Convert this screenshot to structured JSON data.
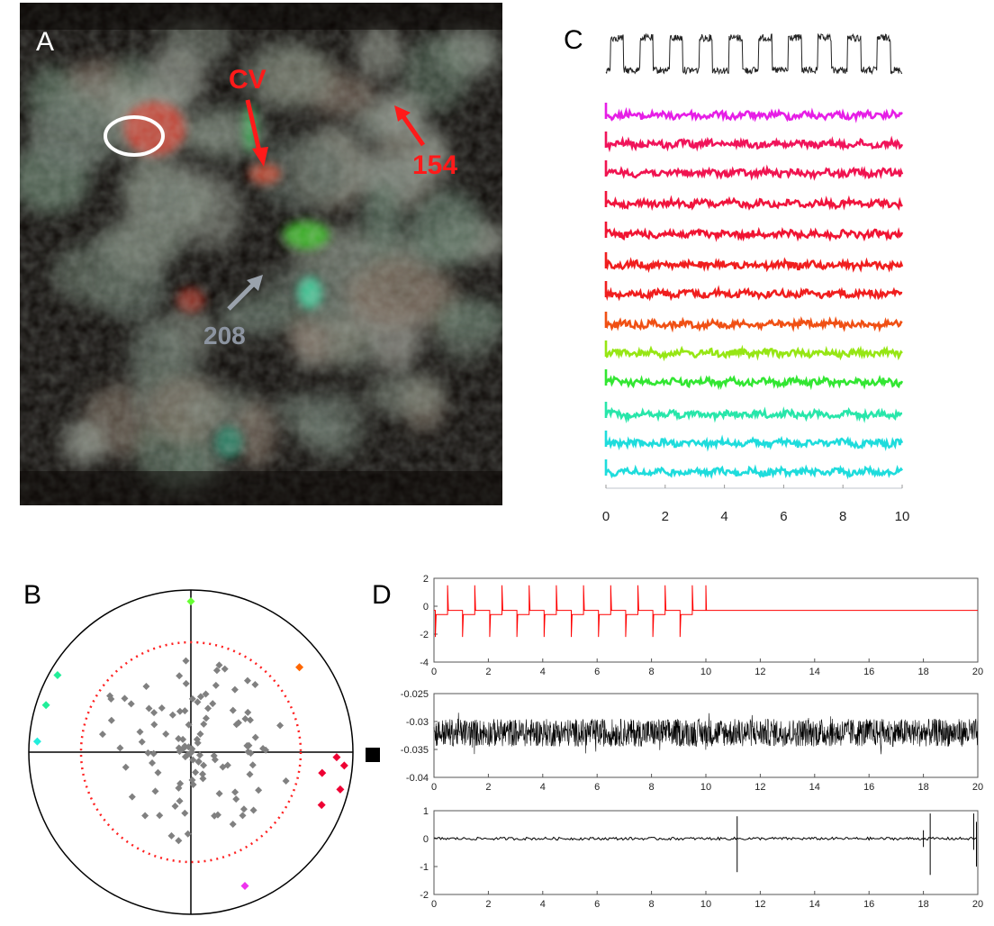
{
  "panels": {
    "A": {
      "letter": "A",
      "labels": {
        "cv": "CV",
        "n154": "154",
        "n208": "208"
      },
      "colors": {
        "red_label": "#ff1a1a",
        "gray_label": "#8c94a0",
        "ellipse": "#ffffff"
      }
    },
    "B": {
      "letter": "B",
      "legend_marker": "black-square"
    },
    "C": {
      "letter": "C",
      "x_ticks": [
        "0",
        "2",
        "4",
        "6",
        "8",
        "10"
      ],
      "trace_colors": [
        "#e61ee6",
        "#f0145a",
        "#f01450",
        "#f0143c",
        "#f01432",
        "#f01e1e",
        "#f01e1e",
        "#f05014",
        "#96e614",
        "#32e632",
        "#28e6aa",
        "#1edcdc",
        "#1edcdc"
      ],
      "stimulus_color": "#222222"
    },
    "D": {
      "letter": "D"
    }
  },
  "chart_data": [
    {
      "type": "line",
      "panel": "D-top",
      "xlim": [
        0,
        20
      ],
      "ylim": [
        -4,
        2
      ],
      "x_ticks": [
        "0",
        "2",
        "4",
        "6",
        "8",
        "10",
        "12",
        "14",
        "16",
        "18",
        "20"
      ],
      "y_ticks": [
        "2",
        "0",
        "-2",
        "-4"
      ],
      "color": "#ff0000",
      "baseline": -0.3,
      "pulse_period_s": 1.0,
      "pulse_high": -0.6,
      "pulse_low": -0.3,
      "spike_up": 1.5,
      "spike_down": -2.2,
      "stim_end_s": 10
    },
    {
      "type": "line",
      "panel": "D-middle",
      "xlim": [
        0,
        20
      ],
      "ylim": [
        -0.04,
        -0.025
      ],
      "x_ticks": [
        "0",
        "2",
        "4",
        "6",
        "8",
        "10",
        "12",
        "14",
        "16",
        "18",
        "20"
      ],
      "y_ticks": [
        "-0.025",
        "-0.03",
        "-0.035",
        "-0.04"
      ],
      "color": "#000000",
      "mean": -0.032,
      "noise_amplitude": 0.0025
    },
    {
      "type": "line",
      "panel": "D-bottom",
      "xlim": [
        0,
        20
      ],
      "ylim": [
        -2,
        1
      ],
      "x_ticks": [
        "0",
        "2",
        "4",
        "6",
        "8",
        "10",
        "12",
        "14",
        "16",
        "18",
        "20"
      ],
      "y_ticks": [
        "1",
        "0",
        "-1",
        "-2"
      ],
      "color": "#000000",
      "events": [
        {
          "x": 11.15,
          "up": 0.8,
          "down": -1.2
        },
        {
          "x": 18.0,
          "up": 0.3,
          "down": -0.3
        },
        {
          "x": 18.25,
          "up": 0.9,
          "down": -1.3
        },
        {
          "x": 19.85,
          "up": 0.9,
          "down": -0.4
        },
        {
          "x": 19.95,
          "up": 0.6,
          "down": -1.0
        }
      ]
    },
    {
      "type": "line",
      "panel": "C",
      "xlim": [
        0,
        10
      ],
      "x_ticks": [
        "0",
        "2",
        "4",
        "6",
        "8",
        "10"
      ],
      "stimulus": {
        "period": 1.0,
        "cycles": 10,
        "color": "#222222"
      },
      "series_count": 13
    },
    {
      "type": "scatter",
      "panel": "B",
      "description": "polar phase plot",
      "marker": "diamond",
      "points_colored": [
        {
          "r": 0.93,
          "angle_deg": 90,
          "color": "#66ff33"
        },
        {
          "r": 0.95,
          "angle_deg": 150,
          "color": "#22ee99"
        },
        {
          "r": 0.94,
          "angle_deg": 162,
          "color": "#22ee99"
        },
        {
          "r": 0.95,
          "angle_deg": 176,
          "color": "#22eedd"
        },
        {
          "r": 0.85,
          "angle_deg": 38,
          "color": "#ff6600"
        },
        {
          "r": 0.9,
          "angle_deg": -2,
          "color": "#ee0033"
        },
        {
          "r": 0.95,
          "angle_deg": -5,
          "color": "#ee0033"
        },
        {
          "r": 0.82,
          "angle_deg": -9,
          "color": "#ee0033"
        },
        {
          "r": 0.95,
          "angle_deg": -14,
          "color": "#ee0033"
        },
        {
          "r": 0.87,
          "angle_deg": -22,
          "color": "#ee0033"
        },
        {
          "r": 0.89,
          "angle_deg": -68,
          "color": "#ee33ee"
        }
      ],
      "dotted_circle_r": 0.68
    }
  ]
}
